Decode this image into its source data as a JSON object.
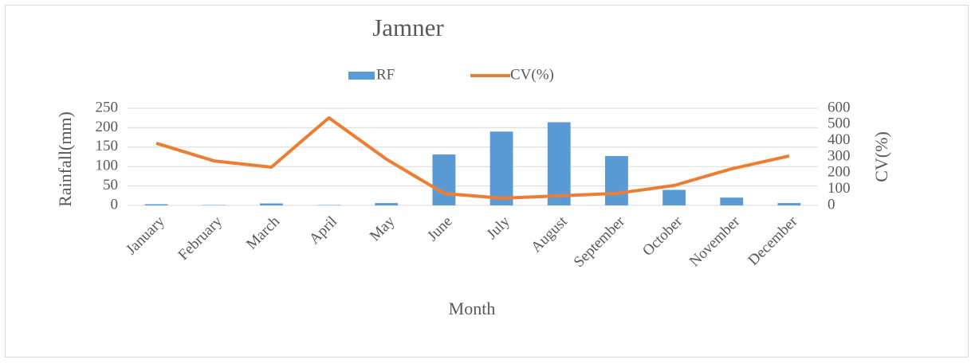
{
  "chart_data": {
    "type": "bar",
    "title": "Jamner",
    "x_label": "Month",
    "y_label": "Rainfall(mm)",
    "y2_label": "CV(%)",
    "categories": [
      "January",
      "February",
      "March",
      "April",
      "May",
      "June",
      "July",
      "August",
      "September",
      "October",
      "November",
      "December"
    ],
    "series": [
      {
        "name": "RF",
        "type": "bar",
        "color": "#5b9bd5",
        "values": [
          3,
          1,
          5,
          1,
          6,
          131,
          190,
          214,
          127,
          40,
          20,
          6
        ]
      },
      {
        "name": "CV(%)",
        "type": "line",
        "axis": "y2",
        "color": "#ed7d31",
        "values": [
          384,
          275,
          236,
          541,
          285,
          74,
          44,
          59,
          74,
          123,
          226,
          305
        ]
      }
    ],
    "ylim": [
      0,
      250
    ],
    "yticks": [
      0,
      50,
      100,
      150,
      200,
      250
    ],
    "y2lim": [
      0,
      600
    ],
    "y2ticks": [
      0,
      100,
      200,
      300,
      400,
      500,
      600
    ],
    "grid": true,
    "legend": "top"
  }
}
